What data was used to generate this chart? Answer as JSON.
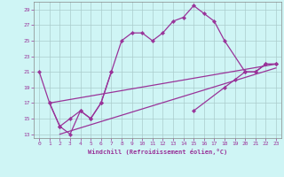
{
  "xlabel": "Windchill (Refroidissement éolien,°C)",
  "bg_color": "#cff5f5",
  "grid_color": "#aacccc",
  "line_color": "#993399",
  "xlim": [
    -0.5,
    23.5
  ],
  "ylim": [
    12.5,
    30
  ],
  "xticks": [
    0,
    1,
    2,
    3,
    4,
    5,
    6,
    7,
    8,
    9,
    10,
    11,
    12,
    13,
    14,
    15,
    16,
    17,
    18,
    19,
    20,
    21,
    22,
    23
  ],
  "yticks": [
    13,
    15,
    17,
    19,
    21,
    23,
    25,
    27,
    29
  ],
  "line1_x": [
    0,
    1,
    2,
    3,
    4,
    5,
    6,
    7,
    8,
    9,
    10,
    11,
    12,
    13,
    14,
    15,
    16,
    17,
    18,
    20,
    21,
    22,
    23
  ],
  "line1_y": [
    21,
    17,
    14,
    13,
    16,
    15,
    17,
    21,
    25,
    26,
    26,
    25,
    26,
    27.5,
    28,
    29.5,
    28.5,
    27.5,
    25,
    21,
    21,
    22,
    22
  ],
  "line2_x": [
    1,
    2,
    3,
    4,
    5,
    6,
    7,
    15,
    18,
    19,
    20,
    21,
    22,
    23
  ],
  "line2_y": [
    17,
    14,
    15,
    16,
    15,
    17,
    21,
    16,
    19,
    20,
    21,
    21,
    22,
    22
  ],
  "line3_x": [
    1,
    23
  ],
  "line3_y": [
    17,
    22
  ],
  "line4_x": [
    2,
    23
  ],
  "line4_y": [
    13,
    21.5
  ]
}
